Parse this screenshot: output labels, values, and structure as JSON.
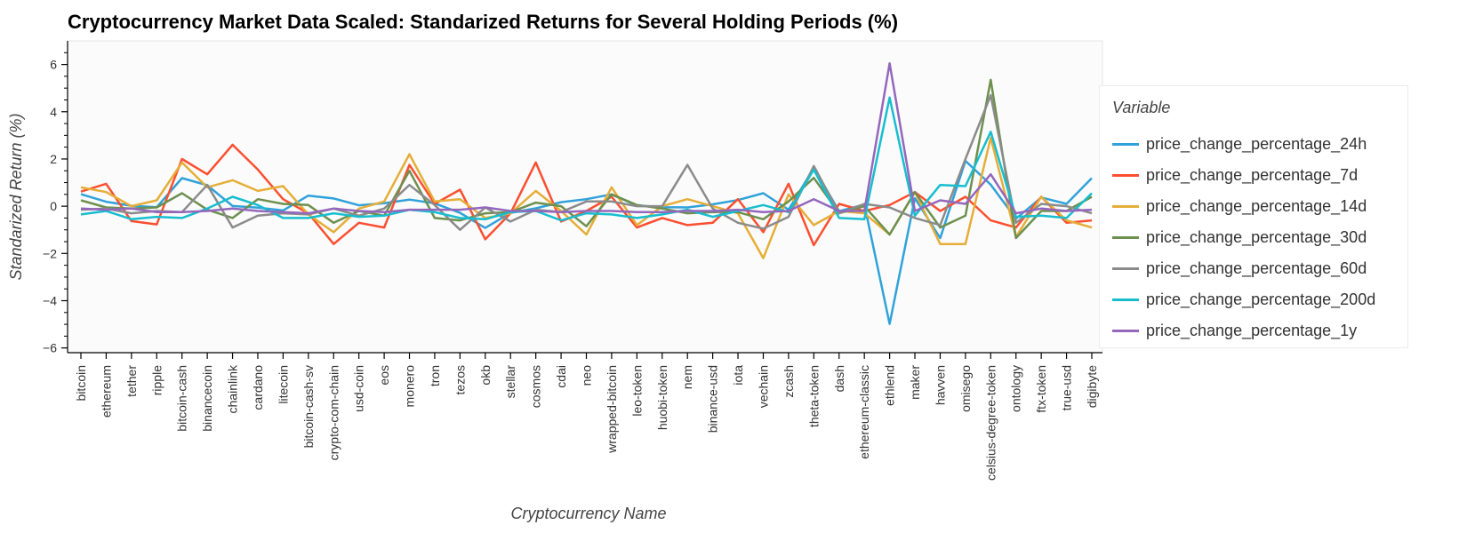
{
  "chart_data": {
    "type": "line",
    "title": "Cryptocurrency Market Data Scaled: Standarized Returns for Several Holding Periods (%)",
    "xlabel": "Cryptocurrency Name",
    "ylabel": "Standarized Return (%)",
    "ylim": [
      -6.2,
      7.0
    ],
    "yticks": [
      -6,
      -4,
      -2,
      0,
      2,
      4,
      6
    ],
    "grid": false,
    "legend_title": "Variable",
    "legend_position": "right",
    "categories": [
      "bitcoin",
      "ethereum",
      "tether",
      "ripple",
      "bitcoin-cash",
      "binancecoin",
      "chainlink",
      "cardano",
      "litecoin",
      "bitcoin-cash-sv",
      "crypto-com-chain",
      "usd-coin",
      "eos",
      "monero",
      "tron",
      "tezos",
      "okb",
      "stellar",
      "cosmos",
      "cdai",
      "neo",
      "wrapped-bitcoin",
      "leo-token",
      "huobi-token",
      "nem",
      "binance-usd",
      "iota",
      "vechain",
      "zcash",
      "theta-token",
      "dash",
      "ethereum-classic",
      "ethlend",
      "maker",
      "havven",
      "omisego",
      "celsius-degree-token",
      "ontology",
      "ftx-token",
      "true-usd",
      "digibyte"
    ],
    "series": [
      {
        "name": "price_change_percentage_24h",
        "color": "#30a2da",
        "values": [
          0.51,
          0.19,
          0.02,
          -0.04,
          1.19,
          0.89,
          0.01,
          -0.06,
          -0.18,
          0.45,
          0.33,
          0.04,
          0.13,
          0.28,
          0.12,
          -0.28,
          -0.92,
          -0.28,
          -0.09,
          0.17,
          0.3,
          0.5,
          0.03,
          -0.04,
          -0.05,
          0.08,
          0.26,
          0.55,
          -0.15,
          1.62,
          -0.21,
          0.07,
          -4.98,
          0.34,
          -1.35,
          1.92,
          0.91,
          -0.53,
          0.37,
          0.1,
          1.19
        ]
      },
      {
        "name": "price_change_percentage_7d",
        "color": "#fc4f30",
        "values": [
          0.62,
          0.95,
          -0.63,
          -0.77,
          2.0,
          1.35,
          2.6,
          1.55,
          0.3,
          -0.3,
          -1.6,
          -0.7,
          -0.9,
          1.75,
          0.1,
          0.7,
          -1.4,
          -0.3,
          1.85,
          -0.65,
          -0.2,
          0.4,
          -0.9,
          -0.5,
          -0.8,
          -0.7,
          0.3,
          -1.1,
          0.95,
          -1.65,
          0.1,
          -0.2,
          0.05,
          0.6,
          -0.2,
          0.4,
          -0.6,
          -0.9,
          0.4,
          -0.7,
          -0.6
        ]
      },
      {
        "name": "price_change_percentage_14d",
        "color": "#e5ae38",
        "values": [
          0.8,
          0.6,
          0.0,
          0.25,
          1.85,
          0.8,
          1.1,
          0.65,
          0.85,
          -0.35,
          -1.1,
          -0.1,
          0.2,
          2.2,
          0.2,
          0.3,
          -0.5,
          -0.3,
          0.65,
          -0.2,
          -1.2,
          0.8,
          -0.8,
          0.0,
          0.3,
          0.0,
          -0.3,
          -2.2,
          0.5,
          -0.8,
          -0.2,
          -0.3,
          -1.2,
          0.6,
          -1.6,
          -1.6,
          2.9,
          -1.3,
          0.4,
          -0.6,
          -0.9
        ]
      },
      {
        "name": "price_change_percentage_30d",
        "color": "#6d904f",
        "values": [
          0.25,
          -0.05,
          -0.1,
          -0.05,
          0.55,
          -0.15,
          -0.5,
          0.3,
          0.1,
          0.05,
          -0.7,
          -0.2,
          -0.4,
          1.5,
          -0.5,
          -0.6,
          -0.3,
          -0.25,
          0.15,
          0.0,
          -0.85,
          0.5,
          0.05,
          -0.1,
          -0.3,
          -0.25,
          -0.25,
          -0.55,
          0.2,
          1.2,
          -0.3,
          0.0,
          -1.2,
          0.6,
          -0.9,
          -0.4,
          5.35,
          -1.35,
          -0.2,
          -0.2,
          0.4
        ]
      },
      {
        "name": "price_change_percentage_60d",
        "color": "#8b8b8b",
        "values": [
          -0.15,
          -0.1,
          -0.3,
          -0.2,
          -0.25,
          0.9,
          -0.9,
          -0.4,
          -0.3,
          -0.35,
          -0.1,
          -0.4,
          -0.1,
          0.9,
          0.05,
          -1.0,
          -0.05,
          -0.65,
          -0.15,
          -0.25,
          0.2,
          0.2,
          0.0,
          0.0,
          1.75,
          -0.1,
          -0.7,
          -0.95,
          -0.45,
          1.7,
          -0.3,
          0.1,
          -0.05,
          -0.5,
          -0.8,
          2.0,
          4.7,
          -0.7,
          0.1,
          0.0,
          -0.3
        ]
      },
      {
        "name": "price_change_percentage_200d",
        "color": "#17becf",
        "values": [
          -0.35,
          -0.2,
          -0.55,
          -0.45,
          -0.5,
          -0.1,
          0.4,
          0.05,
          -0.5,
          -0.5,
          -0.3,
          -0.45,
          -0.4,
          -0.15,
          -0.25,
          -0.5,
          -0.55,
          -0.25,
          -0.2,
          -0.6,
          -0.3,
          -0.35,
          -0.5,
          -0.35,
          -0.15,
          -0.45,
          -0.2,
          0.05,
          -0.25,
          1.55,
          -0.5,
          -0.55,
          4.6,
          -0.4,
          0.9,
          0.85,
          3.15,
          -0.45,
          -0.4,
          -0.5,
          0.55
        ]
      },
      {
        "name": "price_change_percentage_1y",
        "color": "#9467bd",
        "values": [
          -0.1,
          -0.15,
          -0.1,
          -0.25,
          -0.25,
          -0.2,
          -0.1,
          -0.2,
          -0.25,
          -0.3,
          -0.1,
          -0.2,
          -0.25,
          -0.15,
          -0.15,
          -0.15,
          -0.05,
          -0.2,
          -0.2,
          -0.25,
          -0.2,
          -0.2,
          -0.25,
          -0.25,
          -0.2,
          -0.2,
          -0.15,
          -0.25,
          -0.2,
          0.3,
          -0.2,
          -0.2,
          6.05,
          -0.2,
          0.25,
          0.1,
          1.35,
          -0.3,
          -0.1,
          -0.2,
          -0.15
        ]
      }
    ]
  }
}
